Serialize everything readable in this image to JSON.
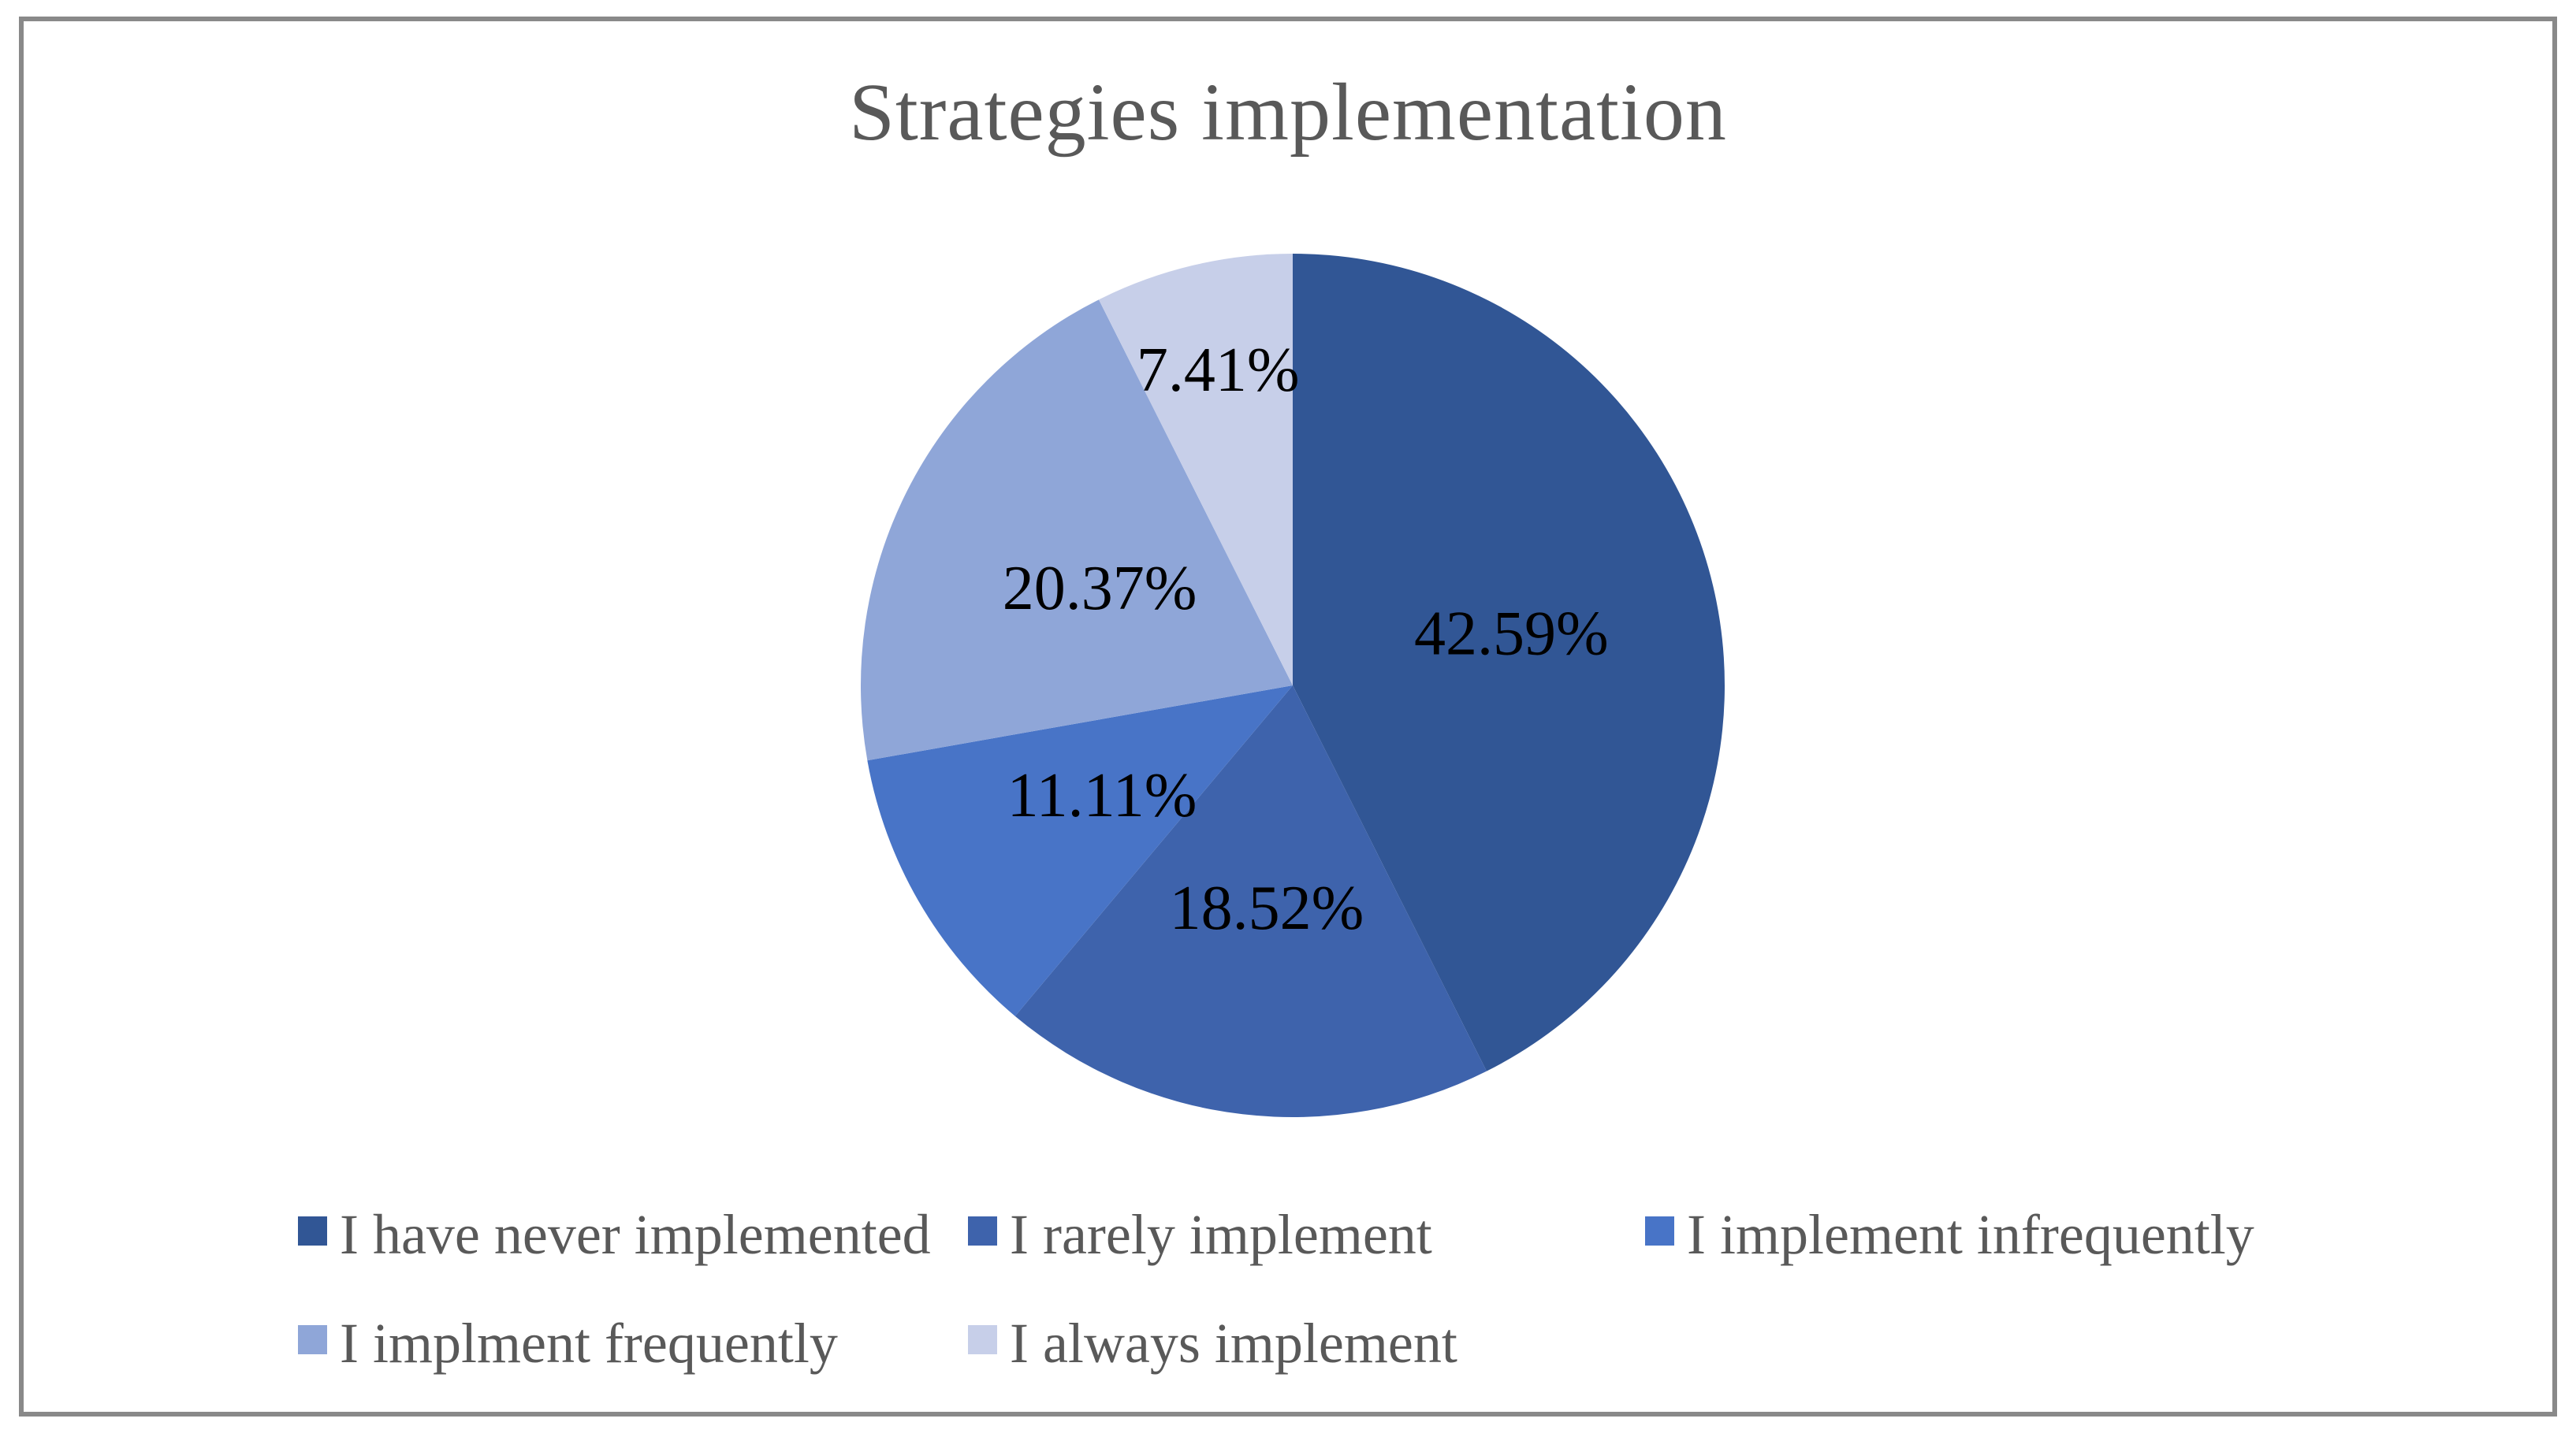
{
  "chart_data": {
    "type": "pie",
    "title": "Strategies implementation",
    "categories": [
      "I have never implemented",
      "I rarely implement",
      "I implement infrequently",
      "I implment frequently",
      "I always implement"
    ],
    "values": [
      42.59,
      18.52,
      11.11,
      20.37,
      7.41
    ],
    "data_labels": [
      "42.59%",
      "18.52%",
      "11.11%",
      "20.37%",
      "7.41%"
    ],
    "colors": [
      "#315695",
      "#3E63AC",
      "#4874C7",
      "#8FA6D8",
      "#C7CFE9"
    ],
    "start_angle_deg_from_top": 0,
    "direction": "clockwise",
    "label_radius_fractions": [
      0.52,
      0.52,
      0.51,
      0.5,
      0.75
    ],
    "legend_position": "bottom",
    "grid": false,
    "title_color": "#595959",
    "data_label_color": "#000000",
    "legend_text_color": "#595959",
    "frame_border_color": "#898989"
  }
}
